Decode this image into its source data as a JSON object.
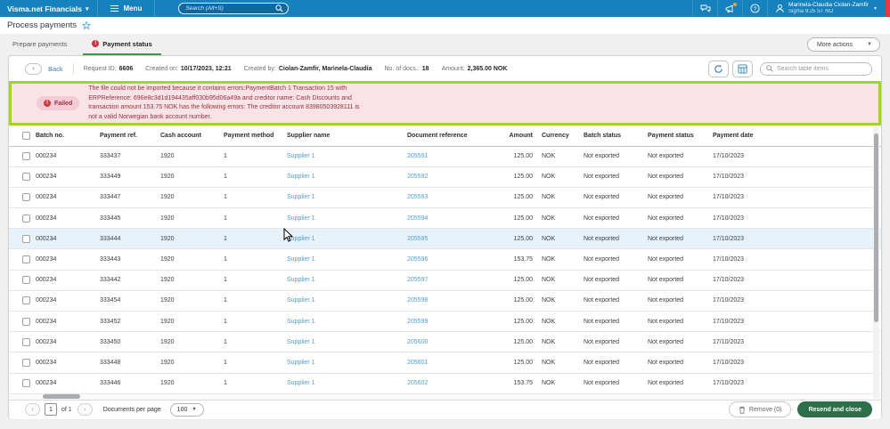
{
  "topbar": {
    "brand": "Visma.net Financials",
    "menu_label": "Menu",
    "search_placeholder": "Search (Alt+S)",
    "user_name": "Marinela-Claudia Ciolan-Zamfir",
    "user_org": "Sigma 9.25 ST NO"
  },
  "page": {
    "title": "Process payments"
  },
  "tabs": {
    "prepare": "Prepare payments",
    "status": "Payment status",
    "status_badge": "!"
  },
  "more_actions": "More actions",
  "toolbar": {
    "back_label": "Back",
    "fields": [
      {
        "label": "Request ID:",
        "value": "6606"
      },
      {
        "label": "Created on:",
        "value": "10/17/2023, 12:21"
      },
      {
        "label": "Created by:",
        "value": "Ciolan-Zamfir, Marinela-Claudia"
      },
      {
        "label": "No. of docs.:",
        "value": "18"
      },
      {
        "label": "Amount:",
        "value": "2,365.00 NOK"
      }
    ],
    "search_placeholder": "Search table items"
  },
  "banner": {
    "status": "Failed",
    "message": "The file could not be imported because it contains errors:PaymentBatch 1 Transaction 15 with ERPReference: 696e8c3d1d194435aff030b95d06a49a and creditor name: Cash Discounts and transaction amount 153.75 NOK has the following errors: The creditor account 83980503928111 is not a valid Norwegian bank account number."
  },
  "table": {
    "columns": [
      {
        "id": "batch",
        "label": "Batch no."
      },
      {
        "id": "ref",
        "label": "Payment ref."
      },
      {
        "id": "cash",
        "label": "Cash account"
      },
      {
        "id": "method",
        "label": "Payment method"
      },
      {
        "id": "supplier",
        "label": "Supplier name"
      },
      {
        "id": "doc",
        "label": "Document reference"
      },
      {
        "id": "amount",
        "label": "Amount"
      },
      {
        "id": "currency",
        "label": "Currency"
      },
      {
        "id": "batch_status",
        "label": "Batch status"
      },
      {
        "id": "payment_status",
        "label": "Payment status"
      },
      {
        "id": "date",
        "label": "Payment date"
      }
    ],
    "rows": [
      {
        "batch": "000234",
        "ref": "333437",
        "cash": "1920",
        "method": "1",
        "supplier": "Supplier 1",
        "doc": "205591",
        "amount": "125.00",
        "currency": "NOK",
        "batch_status": "Not exported",
        "payment_status": "Not exported",
        "date": "17/10/2023",
        "highlighted": false
      },
      {
        "batch": "000234",
        "ref": "333449",
        "cash": "1920",
        "method": "1",
        "supplier": "Supplier 1",
        "doc": "205592",
        "amount": "125.00",
        "currency": "NOK",
        "batch_status": "Not exported",
        "payment_status": "Not exported",
        "date": "17/10/2023",
        "highlighted": false
      },
      {
        "batch": "000234",
        "ref": "333447",
        "cash": "1920",
        "method": "1",
        "supplier": "Supplier 1",
        "doc": "205593",
        "amount": "125.00",
        "currency": "NOK",
        "batch_status": "Not exported",
        "payment_status": "Not exported",
        "date": "17/10/2023",
        "highlighted": false
      },
      {
        "batch": "000234",
        "ref": "333445",
        "cash": "1920",
        "method": "1",
        "supplier": "Supplier 1",
        "doc": "205594",
        "amount": "125.00",
        "currency": "NOK",
        "batch_status": "Not exported",
        "payment_status": "Not exported",
        "date": "17/10/2023",
        "highlighted": false
      },
      {
        "batch": "000234",
        "ref": "333444",
        "cash": "1920",
        "method": "1",
        "supplier": "Supplier 1",
        "doc": "205595",
        "amount": "125.00",
        "currency": "NOK",
        "batch_status": "Not exported",
        "payment_status": "Not exported",
        "date": "17/10/2023",
        "highlighted": true
      },
      {
        "batch": "000234",
        "ref": "333443",
        "cash": "1920",
        "method": "1",
        "supplier": "Supplier 1",
        "doc": "205596",
        "amount": "153.75",
        "currency": "NOK",
        "batch_status": "Not exported",
        "payment_status": "Not exported",
        "date": "17/10/2023",
        "highlighted": false
      },
      {
        "batch": "000234",
        "ref": "333442",
        "cash": "1920",
        "method": "1",
        "supplier": "Supplier 1",
        "doc": "205597",
        "amount": "125.00",
        "currency": "NOK",
        "batch_status": "Not exported",
        "payment_status": "Not exported",
        "date": "17/10/2023",
        "highlighted": false
      },
      {
        "batch": "000234",
        "ref": "333454",
        "cash": "1920",
        "method": "1",
        "supplier": "Supplier 1",
        "doc": "205598",
        "amount": "125.00",
        "currency": "NOK",
        "batch_status": "Not exported",
        "payment_status": "Not exported",
        "date": "17/10/2023",
        "highlighted": false
      },
      {
        "batch": "000234",
        "ref": "333452",
        "cash": "1920",
        "method": "1",
        "supplier": "Supplier 1",
        "doc": "205599",
        "amount": "125.00",
        "currency": "NOK",
        "batch_status": "Not exported",
        "payment_status": "Not exported",
        "date": "17/10/2023",
        "highlighted": false
      },
      {
        "batch": "000234",
        "ref": "333450",
        "cash": "1920",
        "method": "1",
        "supplier": "Supplier 1",
        "doc": "205600",
        "amount": "125.00",
        "currency": "NOK",
        "batch_status": "Not exported",
        "payment_status": "Not exported",
        "date": "17/10/2023",
        "highlighted": false
      },
      {
        "batch": "000234",
        "ref": "333448",
        "cash": "1920",
        "method": "1",
        "supplier": "Supplier 1",
        "doc": "205601",
        "amount": "125.00",
        "currency": "NOK",
        "batch_status": "Not exported",
        "payment_status": "Not exported",
        "date": "17/10/2023",
        "highlighted": false
      },
      {
        "batch": "000234",
        "ref": "333446",
        "cash": "1920",
        "method": "1",
        "supplier": "Supplier 1",
        "doc": "205602",
        "amount": "153.75",
        "currency": "NOK",
        "batch_status": "Not exported",
        "payment_status": "Not exported",
        "date": "17/10/2023",
        "highlighted": false
      }
    ]
  },
  "footer": {
    "page": "1",
    "of_label": "of 1",
    "per_page_label": "Documents per page",
    "per_page_value": "100",
    "remove_label": "Remove (0)",
    "resend_label": "Resend and close"
  },
  "colors": {
    "topbar_blue": "#1581bd",
    "tab_green": "#3f9a47",
    "error_red": "#c9343f",
    "banner_bg": "#f9e3e7",
    "highlight_border": "#a2d32a",
    "link_blue": "#4e9cd6",
    "button_green": "#2c6f49"
  }
}
